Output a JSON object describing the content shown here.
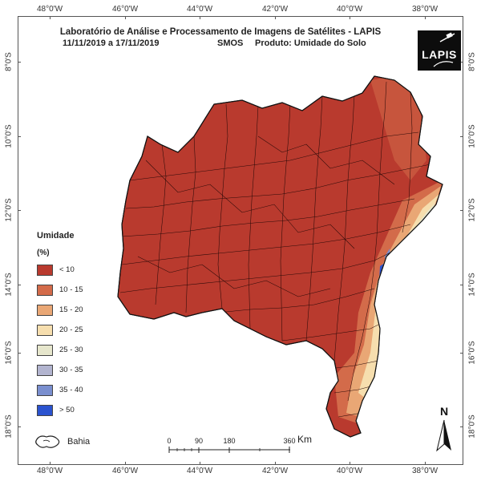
{
  "title": "Laboratório de Análise e Processamento de Imagens de Satélites - LAPIS",
  "subtitle": {
    "date_range": "11/11/2019  a  17/11/2019",
    "sensor": "SMOS",
    "product": "Produto: Umidade do Solo"
  },
  "logo": {
    "text": "LAPIS"
  },
  "axes": {
    "longitude_top": [
      "48°0'W",
      "46°0'W",
      "44°0'W",
      "42°0'W",
      "40°0'W",
      "38°0'W"
    ],
    "longitude_bottom": [
      "48°0'W",
      "46°0'W",
      "44°0'W",
      "42°0'W",
      "40°0'W",
      "38°0'W"
    ],
    "latitude_left": [
      "8°0'S",
      "10°0'S",
      "12°0'S",
      "14°0'S",
      "16°0'S",
      "18°0'S"
    ],
    "latitude_right": [
      "8°0'S",
      "10°0'S",
      "12°0'S",
      "14°0'S",
      "16°0'S",
      "18°0'S"
    ]
  },
  "legend": {
    "title": "Umidade",
    "unit": "(%)",
    "items": [
      {
        "label": "< 10",
        "color": "#b93a2e"
      },
      {
        "label": "10 - 15",
        "color": "#d36b4a"
      },
      {
        "label": "15 - 20",
        "color": "#e9a775"
      },
      {
        "label": "20 - 25",
        "color": "#f6deae"
      },
      {
        "label": "25 - 30",
        "color": "#e6e6cc"
      },
      {
        "label": "30 - 35",
        "color": "#b2b4cf"
      },
      {
        "label": "35 - 40",
        "color": "#7a8fcf"
      },
      {
        "label": "> 50",
        "color": "#2b53cf"
      }
    ]
  },
  "state_label": "Bahia",
  "scale": {
    "ticks": [
      "0",
      "90",
      "180",
      "360"
    ],
    "unit": "Km"
  },
  "north": "N"
}
